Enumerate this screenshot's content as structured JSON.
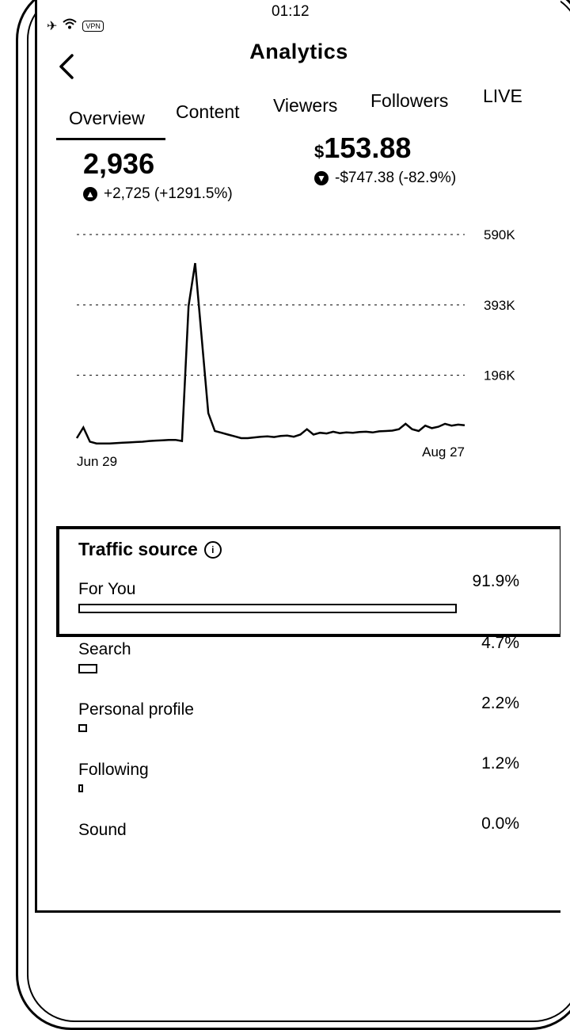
{
  "status_bar": {
    "time": "01:12",
    "vpn": "VPN",
    "icons": [
      "airplane-icon",
      "wifi-icon"
    ]
  },
  "header": {
    "title": "Analytics"
  },
  "tabs": [
    {
      "label": "Overview",
      "active": true
    },
    {
      "label": "Content",
      "active": false
    },
    {
      "label": "Viewers",
      "active": false
    },
    {
      "label": "Followers",
      "active": false
    },
    {
      "label": "LIVE",
      "active": false
    }
  ],
  "metrics": [
    {
      "value": "2,936",
      "currency": "",
      "delta": "+2,725 (+1291.5%)",
      "direction": "up"
    },
    {
      "value": "153.88",
      "currency": "$",
      "delta": "-$747.38 (-82.9%)",
      "direction": "down"
    }
  ],
  "chart_data": {
    "type": "line",
    "x_start_label": "Jun 29",
    "x_end_label": "Aug 27",
    "y_ticks": [
      "590K",
      "393K",
      "196K"
    ],
    "y_tick_values": [
      590000,
      393000,
      196000
    ],
    "ylim": [
      0,
      590000
    ],
    "grid": true,
    "series": [
      {
        "values": [
          20000,
          50000,
          10000,
          5000,
          5000,
          5000,
          6000,
          7000,
          8000,
          9000,
          10000,
          12000,
          13000,
          14000,
          15000,
          15000,
          12000,
          390000,
          510000,
          300000,
          90000,
          40000,
          35000,
          30000,
          25000,
          20000,
          20000,
          22000,
          24000,
          25000,
          23000,
          26000,
          27000,
          24000,
          30000,
          45000,
          30000,
          35000,
          33000,
          38000,
          34000,
          36000,
          35000,
          37000,
          38000,
          36000,
          39000,
          40000,
          41000,
          45000,
          60000,
          45000,
          40000,
          55000,
          48000,
          52000,
          60000,
          55000,
          58000,
          56000
        ]
      }
    ]
  },
  "traffic_source": {
    "title": "Traffic source",
    "sources": [
      {
        "label": "For You",
        "pct_text": "91.9%",
        "pct": 91.9
      },
      {
        "label": "Search",
        "pct_text": "4.7%",
        "pct": 4.7
      },
      {
        "label": "Personal profile",
        "pct_text": "2.2%",
        "pct": 2.2
      },
      {
        "label": "Following",
        "pct_text": "1.2%",
        "pct": 1.2
      },
      {
        "label": "Sound",
        "pct_text": "0.0%",
        "pct": 0.0
      }
    ]
  }
}
